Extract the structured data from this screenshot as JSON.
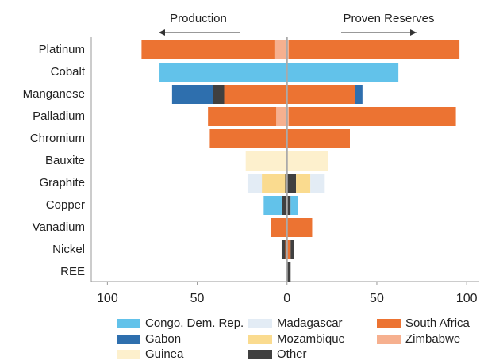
{
  "chart_data": {
    "type": "bar",
    "orientation": "horizontal",
    "annotations": [
      "Production",
      "Proven Reserves"
    ],
    "categories": [
      "Platinum",
      "Cobalt",
      "Manganese",
      "Palladium",
      "Chromium",
      "Bauxite",
      "Graphite",
      "Copper",
      "Vanadium",
      "Nickel",
      "REE"
    ],
    "xlim": [
      -109,
      107
    ],
    "xticks": [
      {
        "value": -100,
        "label": "100"
      },
      {
        "value": -50,
        "label": "50"
      },
      0,
      50,
      100
    ],
    "series": [
      {
        "name": "Zimbabwe",
        "color": "#f6b08f",
        "production": [
          -7,
          null,
          null,
          -6,
          null,
          null,
          null,
          null,
          null,
          null,
          null
        ],
        "reserves": [
          1,
          null,
          null,
          1,
          null,
          null,
          null,
          null,
          null,
          null,
          null
        ]
      },
      {
        "name": "South Africa",
        "color": "#ec7332",
        "production": [
          -74,
          null,
          -35,
          -38,
          -43,
          null,
          null,
          null,
          -9,
          -1,
          null
        ],
        "reserves": [
          95,
          null,
          38,
          93,
          35,
          null,
          null,
          null,
          14,
          2,
          null
        ]
      },
      {
        "name": "Other",
        "color": "#404040",
        "production": [
          null,
          null,
          -6,
          null,
          null,
          null,
          -1,
          -3,
          null,
          -2,
          null
        ],
        "reserves": [
          null,
          null,
          null,
          null,
          null,
          null,
          5,
          2,
          null,
          2,
          2
        ]
      },
      {
        "name": "Mozambique",
        "color": "#fadb8f",
        "production": [
          null,
          null,
          null,
          null,
          null,
          null,
          -13,
          null,
          null,
          null,
          null
        ],
        "reserves": [
          null,
          null,
          null,
          null,
          null,
          null,
          8,
          null,
          null,
          null,
          null
        ]
      },
      {
        "name": "Madagascar",
        "color": "#e3ecf5",
        "production": [
          null,
          null,
          null,
          null,
          null,
          null,
          -8,
          null,
          null,
          null,
          null
        ],
        "reserves": [
          null,
          null,
          null,
          null,
          null,
          null,
          8,
          null,
          null,
          null,
          null
        ]
      },
      {
        "name": "Gabon",
        "color": "#2e6fae",
        "production": [
          null,
          null,
          -23,
          null,
          null,
          null,
          null,
          null,
          null,
          null,
          null
        ],
        "reserves": [
          null,
          null,
          4,
          null,
          null,
          null,
          null,
          null,
          null,
          null,
          null
        ]
      },
      {
        "name": "Congo, Dem. Rep.",
        "color": "#62c2ea",
        "production": [
          null,
          -71,
          null,
          null,
          null,
          null,
          null,
          -10,
          null,
          null,
          null
        ],
        "reserves": [
          null,
          62,
          null,
          null,
          null,
          null,
          null,
          4,
          null,
          null,
          null
        ]
      },
      {
        "name": "Guinea",
        "color": "#fdf0cd",
        "production": [
          null,
          null,
          null,
          null,
          null,
          -23,
          null,
          null,
          null,
          null,
          null
        ],
        "reserves": [
          null,
          null,
          null,
          null,
          null,
          23,
          null,
          null,
          null,
          null,
          null
        ]
      }
    ]
  }
}
